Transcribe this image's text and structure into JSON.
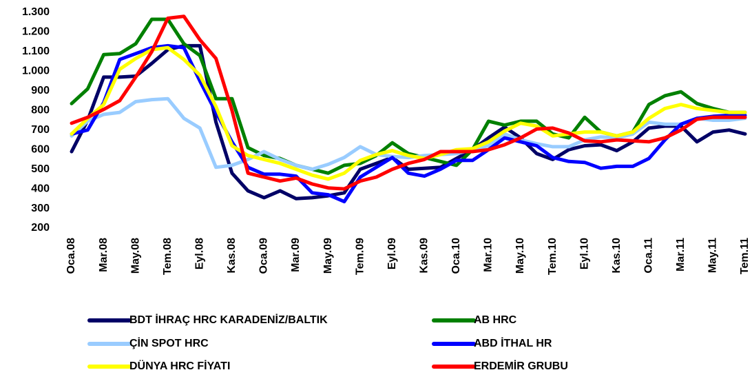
{
  "chart_data": {
    "type": "line",
    "categories": [
      "Oca.08",
      null,
      "Mar.08",
      null,
      "May.08",
      null,
      "Tem.08",
      null,
      "Eyl.08",
      null,
      "Kas.08",
      null,
      "Oca.09",
      null,
      "Mar.09",
      null,
      "May.09",
      null,
      "Tem.09",
      null,
      "Eyl.09",
      null,
      "Kas.09",
      null,
      "Oca.10",
      null,
      "Mar.10",
      null,
      "May.10",
      null,
      "Tem.10",
      null,
      "Eyl.10",
      null,
      "Kas.10",
      null,
      "Oca.11",
      null,
      "Mar.11",
      null,
      "May.11",
      null,
      "Tem.11"
    ],
    "series": [
      {
        "name": "BDT İHRAÇ HRC KARADENİZ/BALTIK",
        "color": "#000066",
        "values": [
          590,
          750,
          970,
          970,
          975,
          1040,
          1110,
          1130,
          1130,
          740,
          480,
          390,
          355,
          390,
          350,
          355,
          365,
          380,
          500,
          530,
          560,
          500,
          505,
          510,
          555,
          600,
          660,
          715,
          660,
          580,
          550,
          600,
          620,
          625,
          595,
          640,
          710,
          720,
          720,
          640,
          690,
          700,
          680
        ]
      },
      {
        "name": "AB HRC",
        "color": "#008000",
        "values": [
          835,
          910,
          1085,
          1090,
          1140,
          1265,
          1265,
          1140,
          1080,
          860,
          860,
          610,
          570,
          555,
          520,
          500,
          480,
          520,
          530,
          570,
          635,
          580,
          560,
          540,
          520,
          600,
          745,
          725,
          745,
          745,
          680,
          660,
          765,
          690,
          670,
          690,
          830,
          875,
          895,
          835,
          810,
          790,
          790
        ]
      },
      {
        "name": "ÇİN SPOT HRC",
        "color": "#99ccff",
        "values": [
          670,
          745,
          780,
          790,
          845,
          855,
          860,
          760,
          710,
          510,
          520,
          550,
          590,
          550,
          520,
          500,
          525,
          560,
          615,
          575,
          565,
          560,
          570,
          575,
          580,
          600,
          620,
          680,
          650,
          630,
          615,
          615,
          650,
          665,
          660,
          680,
          740,
          730,
          730,
          760,
          750,
          750,
          760
        ]
      },
      {
        "name": "ABD İTHAL HR",
        "color": "#0000ff",
        "values": [
          680,
          700,
          840,
          1060,
          1090,
          1120,
          1130,
          1120,
          950,
          790,
          640,
          510,
          475,
          475,
          465,
          380,
          370,
          335,
          460,
          510,
          560,
          480,
          465,
          500,
          545,
          545,
          600,
          660,
          640,
          620,
          560,
          540,
          535,
          505,
          515,
          515,
          555,
          650,
          730,
          760,
          770,
          775,
          775
        ]
      },
      {
        "name": "DÜNYA HRC FİYATI",
        "color": "#ffff00",
        "values": [
          680,
          760,
          830,
          1010,
          1065,
          1110,
          1120,
          1060,
          980,
          820,
          620,
          570,
          550,
          530,
          500,
          470,
          450,
          480,
          545,
          575,
          595,
          570,
          555,
          575,
          600,
          605,
          640,
          695,
          735,
          720,
          670,
          680,
          690,
          690,
          670,
          690,
          760,
          810,
          830,
          810,
          800,
          790,
          790
        ]
      },
      {
        "name": "ERDEMİR GRUBU",
        "color": "#ff0000",
        "values": [
          735,
          765,
          805,
          850,
          970,
          1100,
          1270,
          1280,
          1160,
          1065,
          800,
          480,
          460,
          440,
          455,
          425,
          405,
          400,
          440,
          460,
          500,
          530,
          550,
          590,
          590,
          590,
          600,
          625,
          660,
          705,
          710,
          685,
          645,
          640,
          650,
          645,
          640,
          660,
          700,
          755,
          765,
          765,
          765
        ]
      }
    ],
    "ylim": [
      200,
      1300
    ],
    "yticks": [
      200,
      300,
      400,
      500,
      600,
      700,
      800,
      900,
      {
        "value": 1000,
        "label": "1.000"
      },
      {
        "value": 1100,
        "label": "1.100"
      },
      {
        "value": 1200,
        "label": "1.200"
      },
      {
        "value": 1300,
        "label": "1.300"
      }
    ]
  }
}
